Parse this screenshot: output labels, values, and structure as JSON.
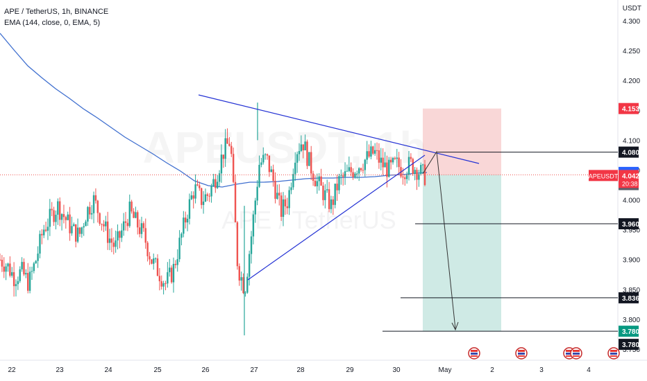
{
  "header": {
    "symbol_line": "APE / TetherUS, 1h, BINANCE",
    "indicator_line": "EMA (144, close, 0, EMA, 5)"
  },
  "watermark": {
    "ticker": "APEUSDT, 1h",
    "name": "APE / TetherUS"
  },
  "price_axis": {
    "currency": "USDT",
    "ticks": [
      "4.300",
      "4.250",
      "4.200",
      "4.150",
      "4.100",
      "4.050",
      "4.000",
      "3.950",
      "3.900",
      "3.850",
      "3.800",
      "3.750"
    ]
  },
  "time_axis": {
    "ticks": [
      "22",
      "23",
      "24",
      "25",
      "26",
      "27",
      "28",
      "29",
      "30",
      "May",
      "2",
      "3",
      "4"
    ]
  },
  "price_labels": [
    {
      "text": "4.153",
      "kind": "stop"
    },
    {
      "text": "4.080",
      "kind": "line"
    },
    {
      "text": "4.046",
      "kind": "blue"
    },
    {
      "text": "4.043",
      "kind": "gray"
    },
    {
      "text": "4.042",
      "kind": "current"
    },
    {
      "text": "3.960",
      "kind": "line"
    },
    {
      "text": "3.836",
      "kind": "line"
    },
    {
      "text": "3.780",
      "kind": "target"
    },
    {
      "text": "3.780",
      "kind": "line"
    }
  ],
  "current_price": {
    "symbol": "APEUSDT",
    "price": "4.042",
    "countdown": "20:38"
  },
  "colors": {
    "up": "#26a69a",
    "down": "#ef5350",
    "ema": "#3f6fcf",
    "trendline": "#2432d4",
    "stop_zone": "#f8d0d0",
    "target_zone": "#cce9e4",
    "label_red": "#f23645",
    "label_blue": "#2962ff",
    "label_teal": "#089981"
  },
  "chart_data": {
    "type": "candlestick",
    "symbol": "APE / TetherUS",
    "interval": "1h",
    "exchange": "BINANCE",
    "ylim": [
      3.74,
      4.315
    ],
    "x_dates": [
      "22",
      "23",
      "24",
      "25",
      "26",
      "27",
      "28",
      "29",
      "30",
      "May",
      "2",
      "3",
      "4"
    ],
    "price_path_hourly_closes": [
      3.9,
      3.89,
      3.87,
      3.88,
      3.86,
      3.9,
      3.95,
      3.97,
      3.99,
      3.97,
      3.95,
      3.94,
      3.98,
      4.0,
      3.97,
      3.94,
      3.92,
      3.95,
      3.98,
      3.96,
      3.94,
      3.9,
      3.88,
      3.86,
      3.88,
      3.93,
      3.98,
      4.02,
      4.0,
      4.01,
      4.04,
      4.08,
      4.1,
      3.89,
      3.85,
      3.95,
      4.06,
      4.07,
      4.03,
      3.98,
      4.0,
      4.08,
      4.1,
      4.06,
      4.03,
      4.01,
      3.99,
      4.03,
      4.04,
      4.05,
      4.06,
      4.07,
      4.08,
      4.06,
      4.05,
      4.06,
      4.05,
      4.06,
      4.05,
      4.04
    ],
    "ema": {
      "name": "EMA (144, close, 0, EMA, 5)"
    },
    "trendlines": [
      {
        "from": [
          "25.8",
          4.17
        ],
        "to": [
          "1.6",
          4.045
        ]
      },
      {
        "from": [
          "26.9",
          3.865
        ],
        "to": [
          "30.6",
          4.05
        ]
      }
    ],
    "short_position": {
      "entry": 4.042,
      "stop": 4.153,
      "target": 3.78,
      "from": "30.5",
      "to": "2"
    },
    "horizontal_levels": [
      4.08,
      3.96,
      3.836,
      3.78
    ]
  }
}
